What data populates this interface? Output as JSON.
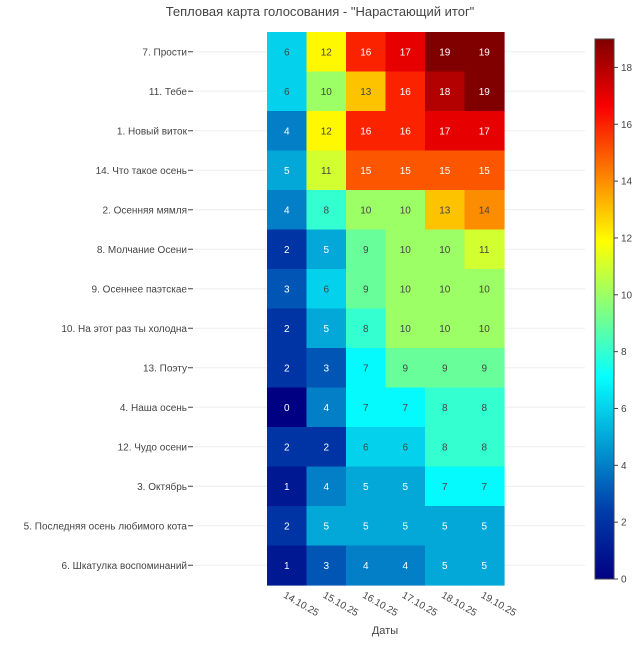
{
  "chart_data": {
    "type": "heatmap",
    "title": "Тепловая карта голосования - \"Нарастающий итог\"",
    "xlabel": "Даты",
    "ylabel": "",
    "x": [
      "14.10.25",
      "15.10.25",
      "16.10.25",
      "17.10.25",
      "18.10.25",
      "19.10.25"
    ],
    "y": [
      "7. Прости",
      "11. Тебе",
      "1. Новый виток",
      "14. Что такое осень",
      "2. Осенняя мямля",
      "8. Молчание Осени",
      "9. Осеннее паэтскае",
      "10. На этот раз ты холодна",
      "13. Поэту",
      "4. Наша осень",
      "12. Чудо осени",
      "3. Октябрь",
      "5. Последняя осень любимого кота",
      "6. Шкатулка воспоминаний"
    ],
    "z": [
      [
        6,
        12,
        16,
        17,
        19,
        19
      ],
      [
        6,
        10,
        13,
        16,
        18,
        19
      ],
      [
        4,
        12,
        16,
        16,
        17,
        17
      ],
      [
        5,
        11,
        15,
        15,
        15,
        15
      ],
      [
        4,
        8,
        10,
        10,
        13,
        14
      ],
      [
        2,
        5,
        9,
        10,
        10,
        11
      ],
      [
        3,
        6,
        9,
        10,
        10,
        10
      ],
      [
        2,
        5,
        8,
        10,
        10,
        10
      ],
      [
        2,
        3,
        7,
        9,
        9,
        9
      ],
      [
        0,
        4,
        7,
        7,
        8,
        8
      ],
      [
        2,
        2,
        6,
        6,
        8,
        8
      ],
      [
        1,
        4,
        5,
        5,
        7,
        7
      ],
      [
        2,
        5,
        5,
        5,
        5,
        5
      ],
      [
        1,
        3,
        4,
        4,
        5,
        5
      ]
    ],
    "zmin": 0,
    "zmax": 19,
    "colorscale": "Jet",
    "colorbar_ticks": [
      0,
      2,
      4,
      6,
      8,
      10,
      12,
      14,
      16,
      18
    ],
    "x_tick_angle": 30
  }
}
